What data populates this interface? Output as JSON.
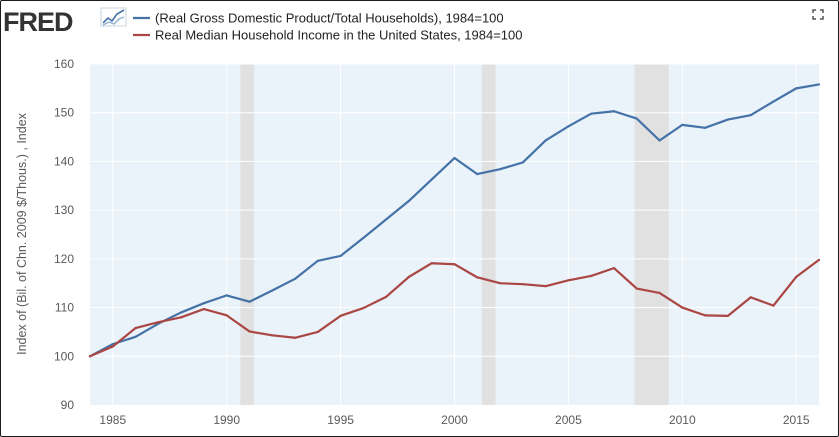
{
  "brand": {
    "name": "FRED"
  },
  "icons": {
    "brand_chart": "line-chart-icon",
    "fullscreen": "fullscreen-icon"
  },
  "colors": {
    "series_1": "#4572a7",
    "series_2": "#aa4643",
    "plot_bg": "#eaf2fa",
    "recession": "#e1e1e1",
    "grid": "#ffffff",
    "brand_text": "#333333"
  },
  "chart_data": {
    "type": "line",
    "title": "",
    "xlabel": "",
    "ylabel": "Index of (Bil. of Chn. 2009 $/Thous.) , Index",
    "xlim": [
      1984,
      2016
    ],
    "ylim": [
      90,
      160
    ],
    "x_ticks": [
      1985,
      1990,
      1995,
      2000,
      2005,
      2010,
      2015
    ],
    "y_ticks": [
      90,
      100,
      110,
      120,
      130,
      140,
      150,
      160
    ],
    "grid": true,
    "legend_position": "top-left",
    "recessions": [
      [
        1990.6,
        1991.2
      ],
      [
        2001.2,
        2001.8
      ],
      [
        2007.9,
        2009.4
      ]
    ],
    "x": [
      1984,
      1985,
      1986,
      1987,
      1988,
      1989,
      1990,
      1991,
      1992,
      1993,
      1994,
      1995,
      1996,
      1997,
      1998,
      1999,
      2000,
      2001,
      2002,
      2003,
      2004,
      2005,
      2006,
      2007,
      2008,
      2009,
      2010,
      2011,
      2012,
      2013,
      2014,
      2015,
      2016
    ],
    "series": [
      {
        "name": "(Real Gross Domestic Product/Total Households), 1984=100",
        "values": [
          100,
          102.5,
          104,
          106.7,
          109,
          110.9,
          112.5,
          111.2,
          113.5,
          115.9,
          119.6,
          120.6,
          124.3,
          128.1,
          131.9,
          136.3,
          140.7,
          137.4,
          138.4,
          139.8,
          144.3,
          147.2,
          149.8,
          150.3,
          148.8,
          144.3,
          147.5,
          146.9,
          148.6,
          149.5,
          152.3,
          155,
          155.8
        ]
      },
      {
        "name": "Real Median Household Income in the United States, 1984=100",
        "values": [
          100,
          102,
          105.8,
          107,
          108,
          109.7,
          108.4,
          105.1,
          104.3,
          103.8,
          105,
          108.3,
          109.9,
          112.2,
          116.3,
          119.1,
          118.9,
          116.2,
          115,
          114.8,
          114.4,
          115.6,
          116.5,
          118.1,
          113.9,
          113,
          110,
          108.4,
          108.3,
          112.1,
          110.4,
          116.3,
          119.8
        ]
      }
    ]
  }
}
